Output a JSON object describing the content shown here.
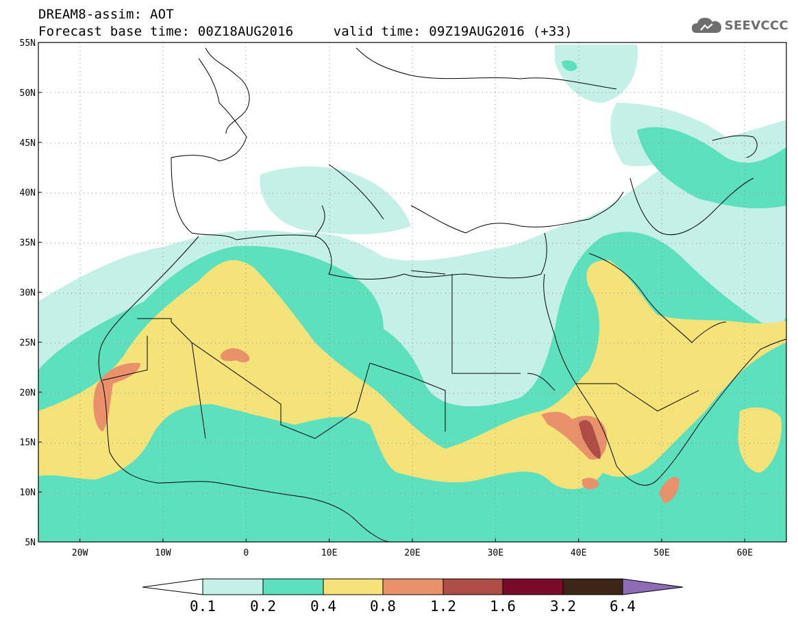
{
  "header": {
    "title_line1": "DREAM8-assim: AOT",
    "title_line2": "Forecast base time: 00Z18AUG2016     valid time: 09Z19AUG2016 (+33)"
  },
  "logo": {
    "text": "SEEVCCC",
    "icon": "cloud-icon"
  },
  "map": {
    "projection": "lat-lon",
    "lon_range": [
      -25,
      65
    ],
    "lat_range": [
      5,
      55
    ],
    "grid": "dotted",
    "lat_ticks": [
      "55N",
      "50N",
      "45N",
      "40N",
      "35N",
      "30N",
      "25N",
      "20N",
      "15N",
      "10N",
      "5N"
    ],
    "lon_ticks": [
      "20W",
      "10W",
      "0",
      "10E",
      "20E",
      "30E",
      "40E",
      "50E",
      "60E"
    ]
  },
  "colorbar": {
    "labels": [
      "0.1",
      "0.2",
      "0.4",
      "0.8",
      "1.2",
      "1.6",
      "3.2",
      "6.4"
    ],
    "colors": [
      "#ffffff",
      "#c5f0e8",
      "#5ce0bd",
      "#f5e37a",
      "#e8916b",
      "#ad4d45",
      "#7a0a2a",
      "#3d2615",
      "#8e6bb5"
    ]
  }
}
